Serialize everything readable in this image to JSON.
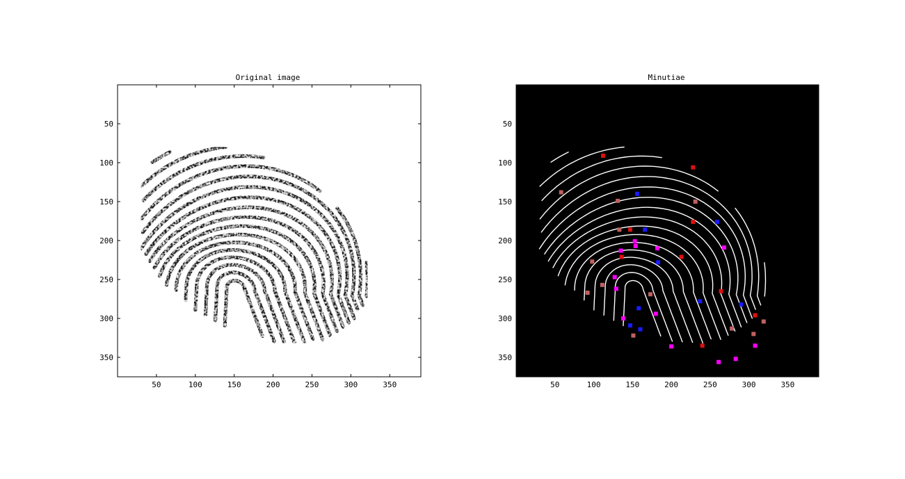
{
  "panels": [
    {
      "title": "Original image",
      "xticks": [
        "50",
        "100",
        "150",
        "200",
        "250",
        "300",
        "350"
      ],
      "yticks": [
        "50",
        "100",
        "150",
        "200",
        "250",
        "300",
        "350"
      ]
    },
    {
      "title": "Minutiae",
      "xticks": [
        "50",
        "100",
        "150",
        "200",
        "250",
        "300",
        "350"
      ],
      "yticks": [
        "50",
        "100",
        "150",
        "200",
        "250",
        "300",
        "350"
      ]
    }
  ],
  "image_extent": {
    "width": 390,
    "height": 375
  },
  "colors": {
    "background_left": "#ffffff",
    "ridges_left": "#1e1e1e",
    "background_right": "#000000",
    "ridges_right": "#ffffff",
    "minutia_red": "#dd1111",
    "minutia_pink": "#c06060",
    "minutia_blue": "#1a1aff",
    "minutia_magenta": "#ff00ff"
  },
  "minutiae": [
    {
      "x": 112,
      "y": 91,
      "kind": "red"
    },
    {
      "x": 228,
      "y": 106,
      "kind": "red"
    },
    {
      "x": 58,
      "y": 138,
      "kind": "pink"
    },
    {
      "x": 131,
      "y": 149,
      "kind": "pink"
    },
    {
      "x": 156,
      "y": 140,
      "kind": "blue"
    },
    {
      "x": 231,
      "y": 150,
      "kind": "pink"
    },
    {
      "x": 259,
      "y": 176,
      "kind": "blue"
    },
    {
      "x": 228,
      "y": 176,
      "kind": "red"
    },
    {
      "x": 133,
      "y": 186,
      "kind": "pink"
    },
    {
      "x": 147,
      "y": 186,
      "kind": "red"
    },
    {
      "x": 166,
      "y": 186,
      "kind": "blue"
    },
    {
      "x": 153,
      "y": 201,
      "kind": "magenta"
    },
    {
      "x": 154,
      "y": 207,
      "kind": "magenta"
    },
    {
      "x": 182,
      "y": 210,
      "kind": "magenta"
    },
    {
      "x": 268,
      "y": 209,
      "kind": "magenta"
    },
    {
      "x": 135,
      "y": 213,
      "kind": "magenta"
    },
    {
      "x": 136,
      "y": 221,
      "kind": "red"
    },
    {
      "x": 213,
      "y": 221,
      "kind": "red"
    },
    {
      "x": 98,
      "y": 227,
      "kind": "pink"
    },
    {
      "x": 183,
      "y": 228,
      "kind": "blue"
    },
    {
      "x": 127,
      "y": 247,
      "kind": "magenta"
    },
    {
      "x": 111,
      "y": 257,
      "kind": "pink"
    },
    {
      "x": 129,
      "y": 262,
      "kind": "magenta"
    },
    {
      "x": 92,
      "y": 267,
      "kind": "pink"
    },
    {
      "x": 173,
      "y": 269,
      "kind": "pink"
    },
    {
      "x": 264,
      "y": 265,
      "kind": "red"
    },
    {
      "x": 237,
      "y": 278,
      "kind": "blue"
    },
    {
      "x": 290,
      "y": 282,
      "kind": "blue"
    },
    {
      "x": 158,
      "y": 287,
      "kind": "blue"
    },
    {
      "x": 180,
      "y": 294,
      "kind": "magenta"
    },
    {
      "x": 138,
      "y": 300,
      "kind": "magenta"
    },
    {
      "x": 308,
      "y": 296,
      "kind": "red"
    },
    {
      "x": 319,
      "y": 304,
      "kind": "pink"
    },
    {
      "x": 147,
      "y": 309,
      "kind": "blue"
    },
    {
      "x": 160,
      "y": 314,
      "kind": "blue"
    },
    {
      "x": 278,
      "y": 313,
      "kind": "pink"
    },
    {
      "x": 151,
      "y": 322,
      "kind": "pink"
    },
    {
      "x": 306,
      "y": 320,
      "kind": "pink"
    },
    {
      "x": 200,
      "y": 336,
      "kind": "magenta"
    },
    {
      "x": 240,
      "y": 335,
      "kind": "red"
    },
    {
      "x": 308,
      "y": 335,
      "kind": "magenta"
    },
    {
      "x": 283,
      "y": 352,
      "kind": "magenta"
    },
    {
      "x": 261,
      "y": 356,
      "kind": "magenta"
    }
  ]
}
